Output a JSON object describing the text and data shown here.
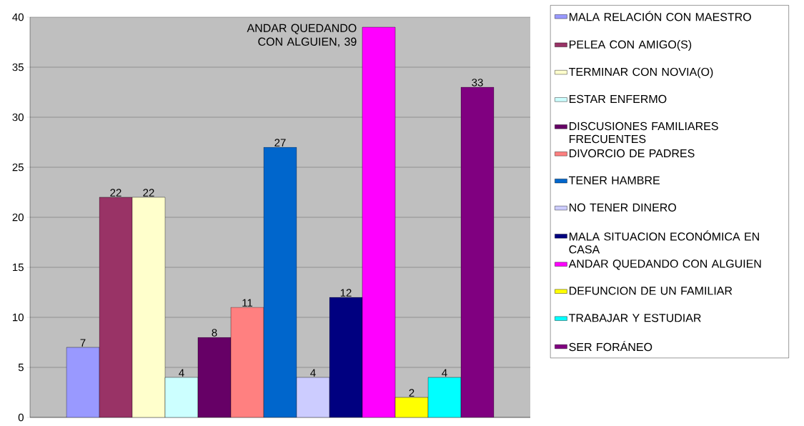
{
  "chart_data": {
    "type": "bar",
    "categories": [
      null
    ],
    "series": [
      {
        "name": "MALA RELACIÓN CON MAESTRO",
        "color": "#9999ff",
        "values": [
          7
        ],
        "value_labels": [
          "7"
        ]
      },
      {
        "name": "PELEA CON AMIGO(S)",
        "color": "#993366",
        "values": [
          22
        ],
        "value_labels": [
          "22"
        ]
      },
      {
        "name": "TERMINAR CON NOVIA(O)",
        "color": "#ffffcc",
        "values": [
          22
        ],
        "value_labels": [
          "22"
        ]
      },
      {
        "name": "ESTAR ENFERMO",
        "color": "#ccffff",
        "values": [
          4
        ],
        "value_labels": [
          "4"
        ]
      },
      {
        "name": "DISCUSIONES FAMILIARES FRECUENTES",
        "color": "#660066",
        "values": [
          8
        ],
        "value_labels": [
          "8"
        ]
      },
      {
        "name": "DIVORCIO DE PADRES",
        "color": "#ff8080",
        "values": [
          11
        ],
        "value_labels": [
          "11"
        ]
      },
      {
        "name": "TENER HAMBRE",
        "color": "#0066cc",
        "values": [
          27
        ],
        "value_labels": [
          "27"
        ]
      },
      {
        "name": "NO TENER DINERO",
        "color": "#ccccff",
        "values": [
          4
        ],
        "value_labels": [
          "4"
        ]
      },
      {
        "name": "MALA SITUACION ECONÓMICA EN CASA",
        "color": "#000080",
        "values": [
          12
        ],
        "value_labels": [
          "12"
        ]
      },
      {
        "name": "ANDAR QUEDANDO CON ALGUIEN",
        "color": "#ff00ff",
        "values": [
          39
        ]
      },
      {
        "name": "DEFUNCION DE UN FAMILIAR",
        "color": "#ffff00",
        "values": [
          2
        ],
        "value_labels": [
          "2"
        ]
      },
      {
        "name": "TRABAJAR Y ESTUDIAR",
        "color": "#00ffff",
        "values": [
          4
        ],
        "value_labels": [
          "4"
        ]
      },
      {
        "name": "SER FORÁNEO",
        "color": "#800080",
        "values": [
          33
        ],
        "value_labels": [
          "33"
        ]
      }
    ],
    "ylim": [
      0,
      40
    ],
    "yticks": [
      0,
      5,
      10,
      15,
      20,
      25,
      30,
      35,
      40
    ],
    "grid": "y",
    "legend": "right",
    "annotations": [
      "ANDAR QUEDANDO CON ALGUIEN, 39"
    ]
  }
}
